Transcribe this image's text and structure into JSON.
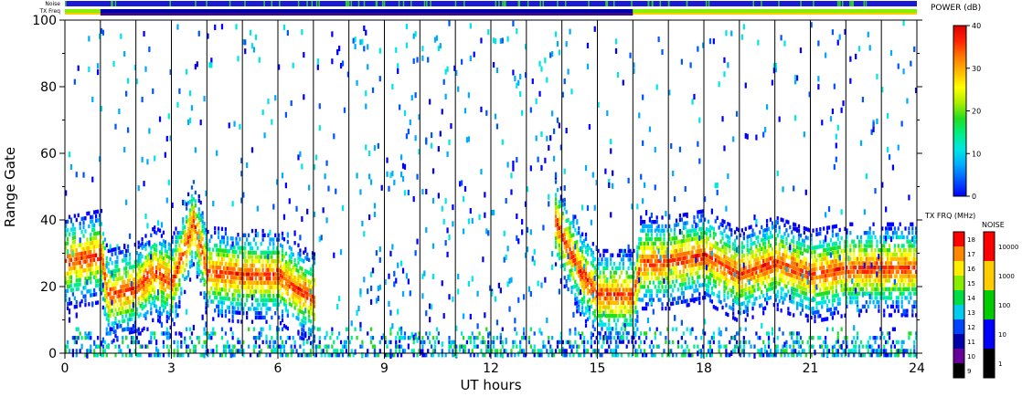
{
  "header": {
    "noise_label": "Noise",
    "txfreq_label": "TX Freq"
  },
  "chart_data": {
    "type": "heatmap",
    "xlabel": "UT hours",
    "ylabel": "Range Gate",
    "x_ticks": [
      "0",
      "3",
      "6",
      "9",
      "12",
      "15",
      "18",
      "21",
      "24"
    ],
    "y_ticks": [
      "0",
      "20",
      "40",
      "60",
      "80",
      "100"
    ],
    "xlim": [
      0,
      24
    ],
    "ylim": [
      0,
      100
    ],
    "grid_vertical_hours": [
      1,
      2,
      3,
      4,
      5,
      6,
      7,
      8,
      9,
      10,
      11,
      12,
      13,
      14,
      15,
      16,
      17,
      18,
      19,
      20,
      21,
      22,
      23
    ],
    "power_colorbar": {
      "label": "POWER (dB)",
      "ticks": [
        "0",
        "10",
        "20",
        "30",
        "40"
      ],
      "range": [
        0,
        40
      ],
      "colors": [
        "#0000ff",
        "#0055ff",
        "#00aaff",
        "#00e5e5",
        "#00ee88",
        "#22dd22",
        "#aaee00",
        "#ffff00",
        "#ffbb00",
        "#ff7700",
        "#ff2200",
        "#dd0000"
      ]
    },
    "txfreq_colorbar": {
      "label": "TX FRQ (MHz)",
      "ticks": [
        "9",
        "10",
        "11",
        "12",
        "13",
        "14",
        "15",
        "16",
        "17",
        "18"
      ],
      "colors": [
        "#000000",
        "#660099",
        "#0000aa",
        "#0044ff",
        "#00ccee",
        "#00dd44",
        "#88ee00",
        "#ffee00",
        "#ff8800",
        "#ff0000"
      ]
    },
    "noise_colorbar": {
      "label": "NOISE",
      "ticks": [
        "1",
        "10",
        "100",
        "1000",
        "10000"
      ],
      "colors": [
        "#000000",
        "#0000ff",
        "#00cc00",
        "#ffcc00",
        "#ff0000"
      ]
    },
    "scatter_band_series": [
      {
        "hours": [
          0,
          1,
          1.2,
          2,
          2.5,
          3,
          3.3,
          3.6,
          4,
          5,
          6,
          6.5,
          7
        ],
        "center_gate": [
          28,
          30,
          18,
          20,
          25,
          22,
          30,
          40,
          25,
          24,
          24,
          20,
          17
        ],
        "power_db": 35
      },
      {
        "hours": [
          13.8,
          14.5,
          15,
          16,
          16.2,
          17,
          18,
          19,
          20,
          21,
          22,
          23,
          24
        ],
        "center_gate": [
          40,
          25,
          18,
          18,
          28,
          28,
          30,
          24,
          28,
          24,
          26,
          26,
          26
        ],
        "power_db": 35
      }
    ],
    "noise_strip": {
      "start": 0,
      "end": 24,
      "dominant": "10"
    },
    "txfreq_strip": [
      {
        "start": 0,
        "end": 1,
        "freq": "15"
      },
      {
        "start": 1,
        "end": 16,
        "freq": "11"
      },
      {
        "start": 16,
        "end": 24,
        "freq": "15"
      }
    ]
  }
}
